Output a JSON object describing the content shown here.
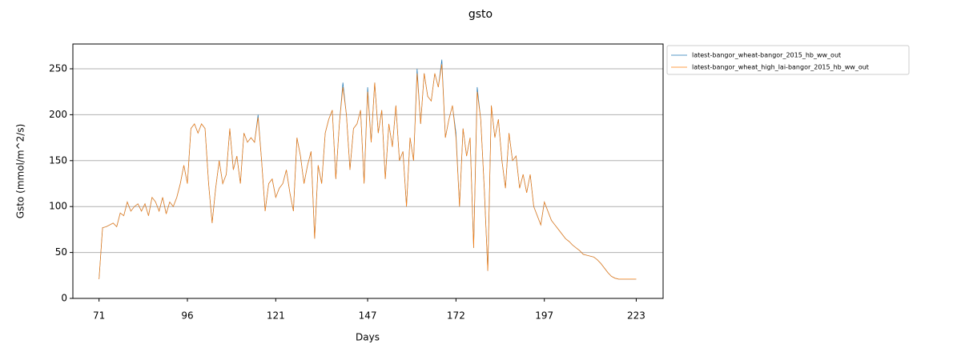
{
  "chart_data": {
    "type": "line",
    "title": "gsto",
    "xlabel": "Days",
    "ylabel": "Gsto (mmol/m^2/s)",
    "x": [
      71,
      72,
      73,
      74,
      75,
      76,
      77,
      78,
      79,
      80,
      81,
      82,
      83,
      84,
      85,
      86,
      87,
      88,
      89,
      90,
      91,
      92,
      93,
      94,
      95,
      96,
      97,
      98,
      99,
      100,
      101,
      102,
      103,
      104,
      105,
      106,
      107,
      108,
      109,
      110,
      111,
      112,
      113,
      114,
      115,
      116,
      117,
      118,
      119,
      120,
      121,
      122,
      123,
      124,
      125,
      126,
      127,
      128,
      129,
      130,
      131,
      132,
      133,
      134,
      135,
      136,
      137,
      138,
      139,
      140,
      141,
      142,
      143,
      144,
      145,
      146,
      147,
      148,
      149,
      150,
      151,
      152,
      153,
      154,
      155,
      156,
      157,
      158,
      159,
      160,
      161,
      162,
      163,
      164,
      165,
      166,
      167,
      168,
      169,
      170,
      171,
      172,
      173,
      174,
      175,
      176,
      177,
      178,
      179,
      180,
      181,
      182,
      183,
      184,
      185,
      186,
      187,
      188,
      189,
      190,
      191,
      192,
      193,
      194,
      195,
      196,
      197,
      198,
      199,
      200,
      201,
      202,
      203,
      204,
      205,
      206,
      207,
      208,
      209,
      210,
      211,
      212,
      213,
      214,
      215,
      216,
      217,
      218,
      219,
      220,
      221,
      222,
      223
    ],
    "series": [
      {
        "name": "latest-bangor_wheat-bangor_2015_hb_ww_out",
        "color": "#1f77b4",
        "values": [
          21,
          77,
          78,
          80,
          82,
          78,
          93,
          90,
          105,
          95,
          100,
          103,
          95,
          103,
          90,
          110,
          105,
          95,
          110,
          92,
          105,
          100,
          110,
          125,
          145,
          125,
          185,
          190,
          180,
          190,
          185,
          125,
          82,
          120,
          150,
          125,
          135,
          185,
          140,
          155,
          125,
          180,
          170,
          175,
          170,
          200,
          150,
          95,
          125,
          130,
          110,
          120,
          125,
          140,
          115,
          95,
          175,
          155,
          125,
          145,
          160,
          65,
          145,
          125,
          180,
          195,
          205,
          130,
          190,
          235,
          200,
          140,
          185,
          190,
          205,
          125,
          230,
          170,
          235,
          180,
          205,
          130,
          190,
          165,
          210,
          150,
          160,
          100,
          175,
          150,
          250,
          190,
          245,
          220,
          215,
          245,
          230,
          260,
          175,
          195,
          210,
          180,
          100,
          185,
          155,
          175,
          55,
          230,
          195,
          120,
          30,
          210,
          175,
          195,
          150,
          120,
          180,
          150,
          155,
          120,
          135,
          115,
          135,
          100,
          90,
          80,
          105,
          95,
          85,
          80,
          75,
          70,
          65,
          62,
          58,
          55,
          52,
          48,
          47,
          46,
          45,
          42,
          38,
          33,
          28,
          24,
          22,
          21,
          21,
          21,
          21,
          21,
          21
        ]
      },
      {
        "name": "latest-bangor_wheat_high_lai-bangor_2015_hb_ww_out",
        "color": "#ff7f0e",
        "values": [
          21,
          77,
          78,
          80,
          82,
          78,
          93,
          90,
          105,
          95,
          100,
          103,
          95,
          103,
          90,
          110,
          105,
          95,
          110,
          92,
          105,
          100,
          110,
          125,
          145,
          125,
          185,
          190,
          180,
          190,
          185,
          125,
          82,
          120,
          150,
          125,
          135,
          185,
          140,
          155,
          125,
          180,
          170,
          175,
          170,
          197,
          150,
          95,
          125,
          130,
          110,
          120,
          125,
          140,
          115,
          95,
          175,
          155,
          125,
          145,
          160,
          65,
          145,
          125,
          180,
          195,
          205,
          130,
          190,
          230,
          200,
          140,
          185,
          190,
          205,
          125,
          225,
          170,
          235,
          180,
          205,
          130,
          190,
          165,
          210,
          150,
          160,
          100,
          175,
          150,
          245,
          190,
          245,
          220,
          215,
          245,
          230,
          255,
          175,
          195,
          210,
          175,
          100,
          185,
          155,
          175,
          55,
          225,
          195,
          120,
          30,
          210,
          175,
          195,
          150,
          120,
          180,
          150,
          155,
          120,
          135,
          115,
          135,
          100,
          90,
          80,
          105,
          95,
          85,
          80,
          75,
          70,
          65,
          62,
          58,
          55,
          52,
          48,
          47,
          46,
          45,
          42,
          38,
          33,
          28,
          24,
          22,
          21,
          21,
          21,
          21,
          21,
          21
        ]
      }
    ],
    "xlim": [
      63.6,
      230.6
    ],
    "xticks": [
      71,
      96,
      121,
      147,
      172,
      197,
      223
    ],
    "ylim": [
      0,
      277
    ],
    "yticks": [
      0,
      50,
      100,
      150,
      200,
      250
    ],
    "grid": true,
    "legend": "outside upper right"
  }
}
